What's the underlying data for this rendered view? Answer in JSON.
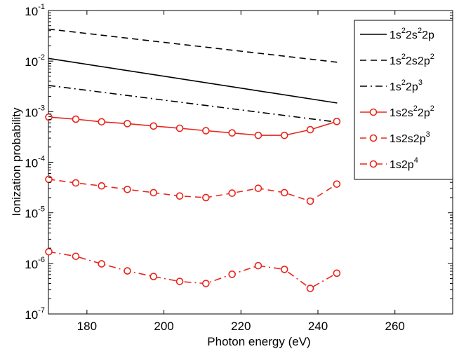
{
  "chart_data": {
    "type": "line",
    "xlabel": "Photon energy (eV)",
    "ylabel": "Ionization probability",
    "xlim": [
      170,
      275
    ],
    "ylim": [
      1e-07,
      0.1
    ],
    "yscale": "log",
    "x_ticks": [
      180,
      200,
      220,
      240,
      260
    ],
    "y_ticks": [
      {
        "value": 1e-07,
        "exp": "-7"
      },
      {
        "value": 1e-06,
        "exp": "-6"
      },
      {
        "value": 1e-05,
        "exp": "-5"
      },
      {
        "value": 0.0001,
        "exp": "-4"
      },
      {
        "value": 0.001,
        "exp": "-3"
      },
      {
        "value": 0.01,
        "exp": "-2"
      },
      {
        "value": 0.1,
        "exp": "-1"
      }
    ],
    "tick_base": "10",
    "grid": false,
    "legend_position": "top-right",
    "series": [
      {
        "name": "1s²2s²2p",
        "name_parts": [
          [
            "1s",
            ""
          ],
          [
            "2",
            "sup"
          ],
          [
            "2s",
            ""
          ],
          [
            "2",
            "sup"
          ],
          [
            "2p",
            ""
          ]
        ],
        "color": "#000000",
        "dash": "solid",
        "marker": "none",
        "x": [
          170,
          245
        ],
        "y": [
          0.0113,
          0.00148
        ]
      },
      {
        "name": "1s²2s2p²",
        "name_parts": [
          [
            "1s",
            ""
          ],
          [
            "2",
            "sup"
          ],
          [
            "2s2p",
            ""
          ],
          [
            "2",
            "sup"
          ]
        ],
        "color": "#000000",
        "dash": "dashed",
        "marker": "none",
        "x": [
          170,
          245
        ],
        "y": [
          0.043,
          0.0095
        ]
      },
      {
        "name": "1s²2p³",
        "name_parts": [
          [
            "1s",
            ""
          ],
          [
            "2",
            "sup"
          ],
          [
            "2p",
            ""
          ],
          [
            "3",
            "sup"
          ]
        ],
        "color": "#000000",
        "dash": "dashdot",
        "marker": "none",
        "x": [
          170,
          245
        ],
        "y": [
          0.0033,
          0.00062
        ]
      },
      {
        "name": "1s2s²2p²",
        "name_parts": [
          [
            "1s2s",
            ""
          ],
          [
            "2",
            "sup"
          ],
          [
            "2p",
            ""
          ],
          [
            "2",
            "sup"
          ]
        ],
        "color": "#e8261c",
        "dash": "solid",
        "marker": "circle",
        "x": [
          170.1,
          177.1,
          183.8,
          190.5,
          197.3,
          204.1,
          210.9,
          217.7,
          224.5,
          231.3,
          238.0,
          244.9
        ],
        "y": [
          0.00078,
          0.00071,
          0.00063,
          0.00058,
          0.00052,
          0.00047,
          0.00042,
          0.00038,
          0.00034,
          0.00034,
          0.00044,
          0.00064
        ]
      },
      {
        "name": "1s2s2p³",
        "name_parts": [
          [
            "1s2s2p",
            ""
          ],
          [
            "3",
            "sup"
          ]
        ],
        "color": "#e8261c",
        "dash": "dashed",
        "marker": "circle",
        "x": [
          170.1,
          177.1,
          183.8,
          190.5,
          197.3,
          204.1,
          210.9,
          217.7,
          224.5,
          231.3,
          238.0,
          244.9
        ],
        "y": [
          4.6e-05,
          3.9e-05,
          3.4e-05,
          2.9e-05,
          2.5e-05,
          2.15e-05,
          2e-05,
          2.45e-05,
          3.05e-05,
          2.5e-05,
          1.7e-05,
          3.7e-05
        ]
      },
      {
        "name": "1s2p⁴",
        "name_parts": [
          [
            "1s2p",
            ""
          ],
          [
            "4",
            "sup"
          ]
        ],
        "color": "#e8261c",
        "dash": "dashdot",
        "marker": "circle",
        "x": [
          170.1,
          177.1,
          183.8,
          190.5,
          197.3,
          204.1,
          210.9,
          217.7,
          224.5,
          231.3,
          238.0,
          244.9
        ],
        "y": [
          1.7e-06,
          1.38e-06,
          9.8e-07,
          7.1e-07,
          5.5e-07,
          4.4e-07,
          4e-07,
          6.1e-07,
          9e-07,
          7.6e-07,
          3.2e-07,
          6.4e-07
        ]
      }
    ]
  }
}
